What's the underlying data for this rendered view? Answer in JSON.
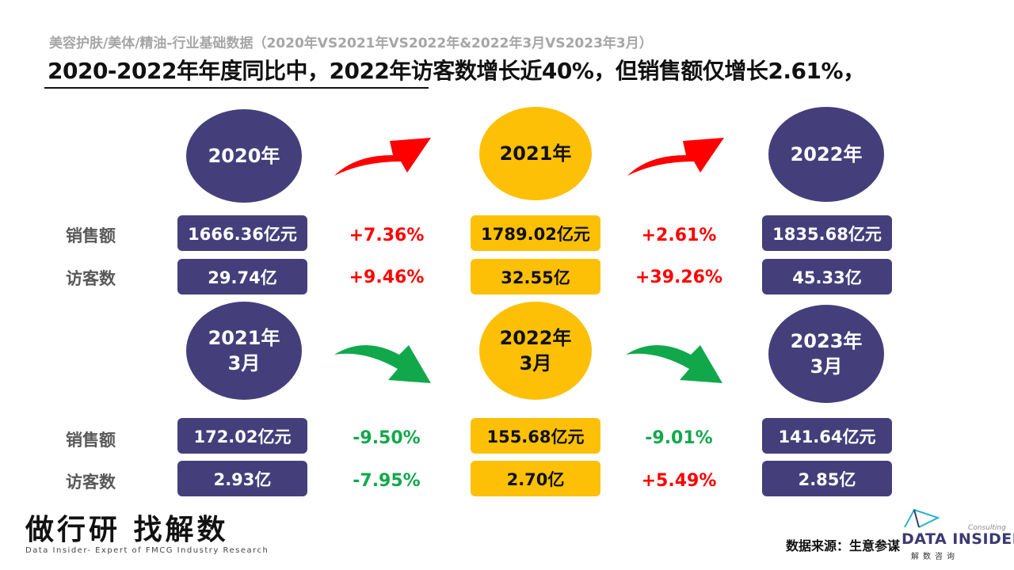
{
  "header": {
    "subtitle": "美容护肤/美体/精油-行业基础数据（2020年VS2021年VS2022年&2022年3月VS2023年3月）",
    "headline": "2020-2022年年度同比中，2022年访客数增长近40%，但销售额仅增长2.61%，"
  },
  "labels": {
    "sales": "销售额",
    "visitors": "访客数"
  },
  "annual": {
    "periods": [
      "2020年",
      "2021年",
      "2022年"
    ],
    "sales": [
      "1666.36亿元",
      "1789.02亿元",
      "1835.68亿元"
    ],
    "visitors": [
      "29.74亿",
      "32.55亿",
      "45.33亿"
    ],
    "sales_change": [
      "+7.36%",
      "+2.61%"
    ],
    "visitors_change": [
      "+9.46%",
      "+39.26%"
    ]
  },
  "monthly": {
    "periods": [
      {
        "year": "2021年",
        "month": "3月"
      },
      {
        "year": "2022年",
        "month": "3月"
      },
      {
        "year": "2023年",
        "month": "3月"
      }
    ],
    "sales": [
      "172.02亿元",
      "155.68亿元",
      "141.64亿元"
    ],
    "visitors": [
      "2.93亿",
      "2.70亿",
      "2.85亿"
    ],
    "sales_change": [
      "-9.50%",
      "-9.01%"
    ],
    "visitors_change": [
      "-7.95%",
      "+5.49%"
    ]
  },
  "footer": {
    "slogan": "做行研 找解数",
    "slogan_sub": "Data Insider- Expert of FMCG Industry Research",
    "source": "数据来源：生意参谋",
    "brand": "DATA INSIDER",
    "brand_cn": "解数咨询",
    "brand_consulting": "Consulting"
  },
  "colors": {
    "purple": "#443f7b",
    "yellow": "#fdc006",
    "up_red": "#ff0000",
    "down_green": "#11a84b"
  }
}
